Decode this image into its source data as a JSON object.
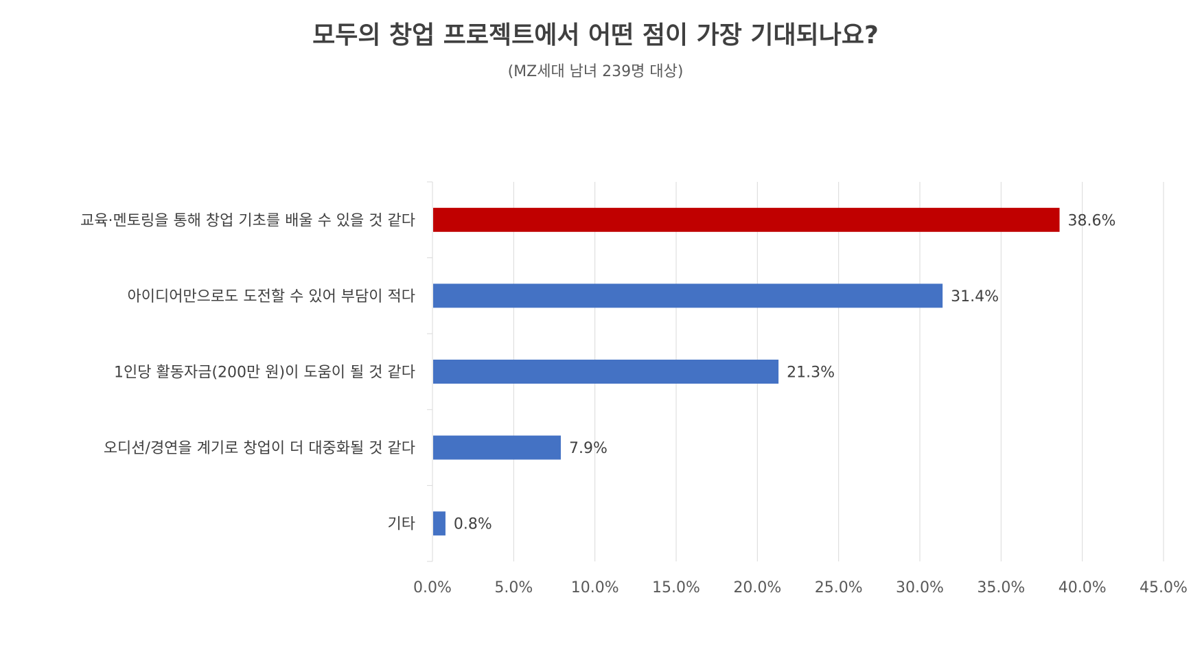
{
  "chart_data": {
    "type": "bar",
    "orientation": "horizontal",
    "title": "모두의 창업 프로젝트에서 어떤 점이 가장 기대되나요?",
    "subtitle": "(MZ세대 남녀 239명 대상)",
    "categories": [
      "교육·멘토링을 통해 창업 기초를 배울 수 있을 것 같다",
      "아이디어만으로도 도전할 수 있어 부담이 적다",
      "1인당 활동자금(200만 원)이 도움이 될 것 같다",
      "오디션/경연을 계기로 창업이 더 대중화될 것 같다",
      "기타"
    ],
    "values": [
      38.6,
      31.4,
      21.3,
      7.9,
      0.8
    ],
    "value_labels": [
      "38.6%",
      "31.4%",
      "21.3%",
      "7.9%",
      "0.8%"
    ],
    "xlim": [
      0,
      45
    ],
    "ticks": [
      0,
      5,
      10,
      15,
      20,
      25,
      30,
      35,
      40,
      45
    ],
    "tick_labels": [
      "0.0%",
      "5.0%",
      "10.0%",
      "15.0%",
      "20.0%",
      "25.0%",
      "30.0%",
      "35.0%",
      "40.0%",
      "45.0%"
    ],
    "grid": true,
    "legend": "none",
    "colors": {
      "highlight": "#C00000",
      "default": "#4472C4",
      "grid": "#D9D9D9",
      "axis": "#D9D9D9"
    },
    "highlight_index": 0
  }
}
